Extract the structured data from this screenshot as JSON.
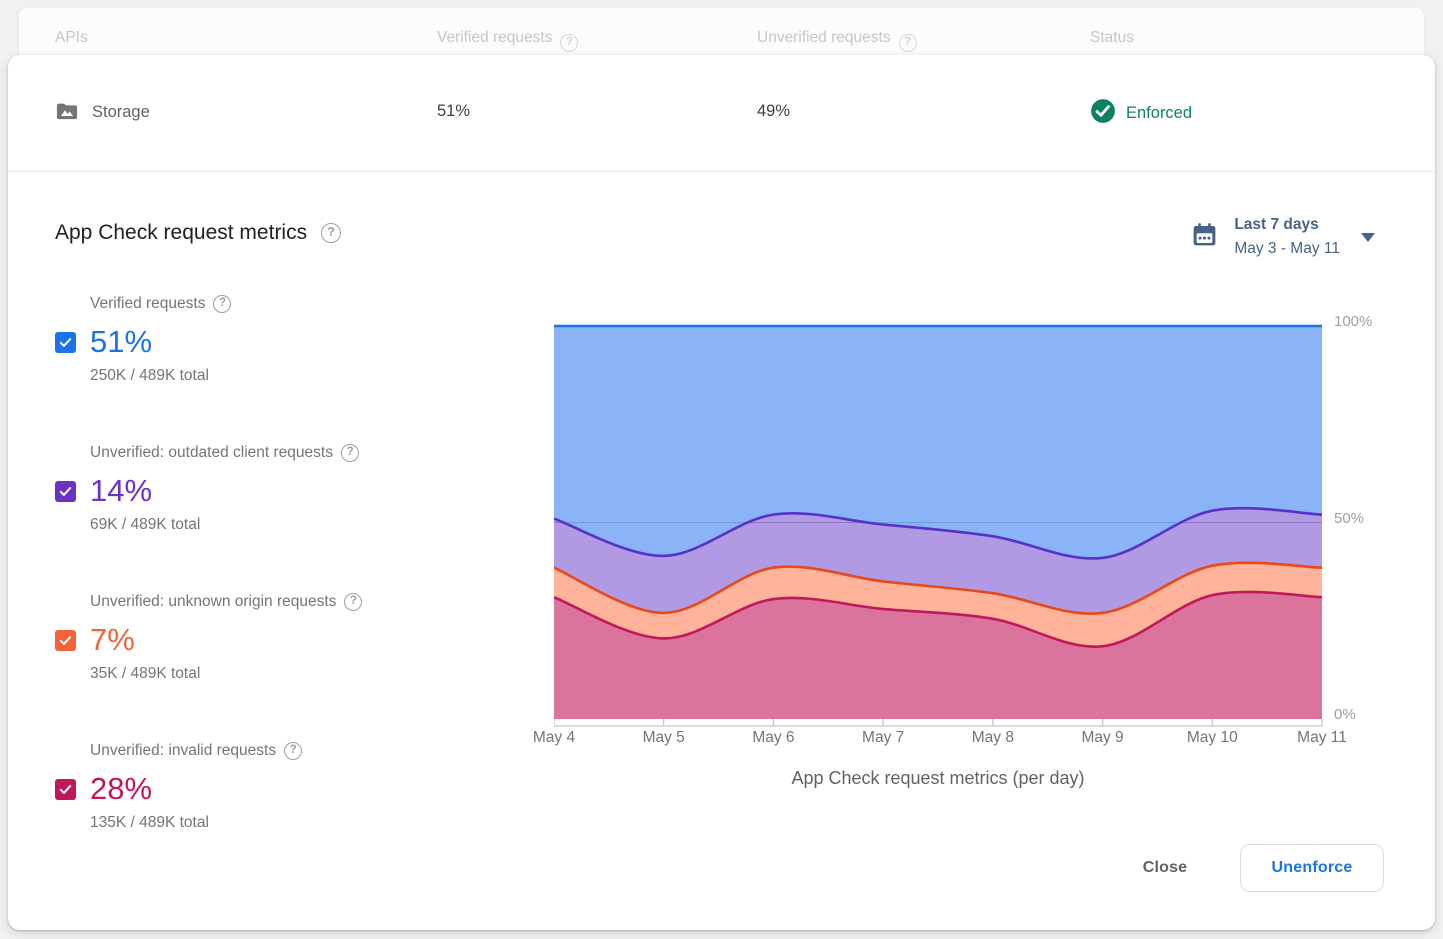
{
  "icons": {
    "help_glyph": "?"
  },
  "table": {
    "columns": [
      "APIs",
      "Verified requests",
      "Unverified requests",
      "Status"
    ],
    "row": {
      "api": "Storage",
      "verified": "51%",
      "unverified": "49%",
      "status": "Enforced",
      "status_color": "#0d8262"
    }
  },
  "metrics_section": {
    "title": "App Check request metrics",
    "date_range": {
      "label": "Last 7 days",
      "range": "May 3 - May 11"
    },
    "legend": [
      {
        "label": "Verified requests",
        "pct": "51%",
        "total": "250K / 489K total",
        "color": "#1a73e8",
        "checked": true
      },
      {
        "label": "Unverified: outdated client requests",
        "pct": "14%",
        "total": "69K / 489K total",
        "color": "#6d32c5",
        "checked": true
      },
      {
        "label": "Unverified: unknown origin requests",
        "pct": "7%",
        "total": "35K / 489K total",
        "color": "#f4613a",
        "checked": true
      },
      {
        "label": "Unverified: invalid requests",
        "pct": "28%",
        "total": "135K / 489K total",
        "color": "#c2185b",
        "checked": true
      }
    ]
  },
  "chart_data": {
    "type": "area",
    "stacked": true,
    "unit": "percent",
    "title": "App Check request metrics (per day)",
    "categories": [
      "May 4",
      "May 5",
      "May 6",
      "May 7",
      "May 8",
      "May 9",
      "May 10",
      "May 11"
    ],
    "series": [
      {
        "name": "Unverified: invalid requests",
        "values": [
          31,
          20.5,
          30.5,
          28,
          25.5,
          18.5,
          31.5,
          31
        ],
        "line_color": "#c2185b",
        "fill_color": "rgba(194,24,91,0.60)"
      },
      {
        "name": "Unverified: unknown origin requests",
        "values": [
          7.5,
          6.5,
          8,
          7,
          6.5,
          8.5,
          7.5,
          7.5
        ],
        "line_color": "#e64a19",
        "fill_color": "rgba(255,87,34,0.45)"
      },
      {
        "name": "Unverified: outdated client requests",
        "values": [
          12.5,
          14.5,
          13.5,
          14.5,
          14.5,
          14,
          14,
          13.5
        ],
        "line_color": "#5632c8",
        "fill_color": "rgba(101,52,200,0.50)"
      },
      {
        "name": "Verified requests",
        "values": [
          49,
          58.5,
          48,
          50.5,
          53.5,
          59,
          47,
          48
        ],
        "line_color": "#1a73e8",
        "fill_color": "rgba(66,133,244,0.62)"
      }
    ],
    "ylim": [
      0,
      100
    ],
    "yticks": [
      {
        "label": "0%",
        "value": 0
      },
      {
        "label": "50%",
        "value": 50
      },
      {
        "label": "100%",
        "value": 100
      }
    ],
    "gridlines": [
      50
    ],
    "legend_position": "left"
  },
  "footer": {
    "close_label": "Close",
    "unenforce_label": "Unenforce"
  }
}
